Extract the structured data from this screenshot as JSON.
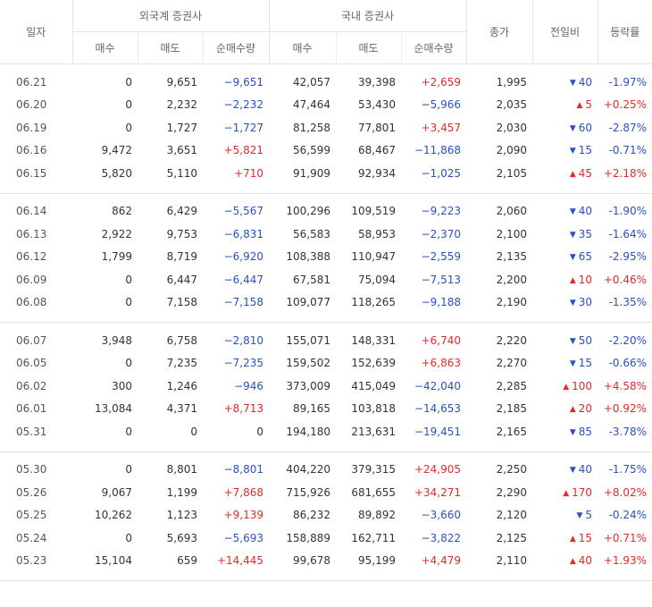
{
  "header": {
    "date": "일자",
    "foreign": "외국계 증권사",
    "domestic": "국내 증권사",
    "close": "종가",
    "change": "전일비",
    "rate": "등락률",
    "buy": "매수",
    "sell": "매도",
    "net": "순매수량"
  },
  "groups": [
    [
      {
        "date": "06.21",
        "fb": "0",
        "fs": "9,651",
        "fn": "−9,651",
        "fnc": "neg",
        "db": "42,057",
        "ds": "39,398",
        "dn": "+2,659",
        "dnc": "pos",
        "close": "1,995",
        "dir": "down",
        "chg": "40",
        "rate": "-1.97%",
        "rc": "neg"
      },
      {
        "date": "06.20",
        "fb": "0",
        "fs": "2,232",
        "fn": "−2,232",
        "fnc": "neg",
        "db": "47,464",
        "ds": "53,430",
        "dn": "−5,966",
        "dnc": "neg",
        "close": "2,035",
        "dir": "up",
        "chg": "5",
        "rate": "+0.25%",
        "rc": "pos"
      },
      {
        "date": "06.19",
        "fb": "0",
        "fs": "1,727",
        "fn": "−1,727",
        "fnc": "neg",
        "db": "81,258",
        "ds": "77,801",
        "dn": "+3,457",
        "dnc": "pos",
        "close": "2,030",
        "dir": "down",
        "chg": "60",
        "rate": "-2.87%",
        "rc": "neg"
      },
      {
        "date": "06.16",
        "fb": "9,472",
        "fs": "3,651",
        "fn": "+5,821",
        "fnc": "pos",
        "db": "56,599",
        "ds": "68,467",
        "dn": "−11,868",
        "dnc": "neg",
        "close": "2,090",
        "dir": "down",
        "chg": "15",
        "rate": "-0.71%",
        "rc": "neg"
      },
      {
        "date": "06.15",
        "fb": "5,820",
        "fs": "5,110",
        "fn": "+710",
        "fnc": "pos",
        "db": "91,909",
        "ds": "92,934",
        "dn": "−1,025",
        "dnc": "neg",
        "close": "2,105",
        "dir": "up",
        "chg": "45",
        "rate": "+2.18%",
        "rc": "pos"
      }
    ],
    [
      {
        "date": "06.14",
        "fb": "862",
        "fs": "6,429",
        "fn": "−5,567",
        "fnc": "neg",
        "db": "100,296",
        "ds": "109,519",
        "dn": "−9,223",
        "dnc": "neg",
        "close": "2,060",
        "dir": "down",
        "chg": "40",
        "rate": "-1.90%",
        "rc": "neg"
      },
      {
        "date": "06.13",
        "fb": "2,922",
        "fs": "9,753",
        "fn": "−6,831",
        "fnc": "neg",
        "db": "56,583",
        "ds": "58,953",
        "dn": "−2,370",
        "dnc": "neg",
        "close": "2,100",
        "dir": "down",
        "chg": "35",
        "rate": "-1.64%",
        "rc": "neg"
      },
      {
        "date": "06.12",
        "fb": "1,799",
        "fs": "8,719",
        "fn": "−6,920",
        "fnc": "neg",
        "db": "108,388",
        "ds": "110,947",
        "dn": "−2,559",
        "dnc": "neg",
        "close": "2,135",
        "dir": "down",
        "chg": "65",
        "rate": "-2.95%",
        "rc": "neg"
      },
      {
        "date": "06.09",
        "fb": "0",
        "fs": "6,447",
        "fn": "−6,447",
        "fnc": "neg",
        "db": "67,581",
        "ds": "75,094",
        "dn": "−7,513",
        "dnc": "neg",
        "close": "2,200",
        "dir": "up",
        "chg": "10",
        "rate": "+0.46%",
        "rc": "pos"
      },
      {
        "date": "06.08",
        "fb": "0",
        "fs": "7,158",
        "fn": "−7,158",
        "fnc": "neg",
        "db": "109,077",
        "ds": "118,265",
        "dn": "−9,188",
        "dnc": "neg",
        "close": "2,190",
        "dir": "down",
        "chg": "30",
        "rate": "-1.35%",
        "rc": "neg"
      }
    ],
    [
      {
        "date": "06.07",
        "fb": "3,948",
        "fs": "6,758",
        "fn": "−2,810",
        "fnc": "neg",
        "db": "155,071",
        "ds": "148,331",
        "dn": "+6,740",
        "dnc": "pos",
        "close": "2,220",
        "dir": "down",
        "chg": "50",
        "rate": "-2.20%",
        "rc": "neg"
      },
      {
        "date": "06.05",
        "fb": "0",
        "fs": "7,235",
        "fn": "−7,235",
        "fnc": "neg",
        "db": "159,502",
        "ds": "152,639",
        "dn": "+6,863",
        "dnc": "pos",
        "close": "2,270",
        "dir": "down",
        "chg": "15",
        "rate": "-0.66%",
        "rc": "neg"
      },
      {
        "date": "06.02",
        "fb": "300",
        "fs": "1,246",
        "fn": "−946",
        "fnc": "neg",
        "db": "373,009",
        "ds": "415,049",
        "dn": "−42,040",
        "dnc": "neg",
        "close": "2,285",
        "dir": "up",
        "chg": "100",
        "rate": "+4.58%",
        "rc": "pos"
      },
      {
        "date": "06.01",
        "fb": "13,084",
        "fs": "4,371",
        "fn": "+8,713",
        "fnc": "pos",
        "db": "89,165",
        "ds": "103,818",
        "dn": "−14,653",
        "dnc": "neg",
        "close": "2,185",
        "dir": "up",
        "chg": "20",
        "rate": "+0.92%",
        "rc": "pos"
      },
      {
        "date": "05.31",
        "fb": "0",
        "fs": "0",
        "fn": "0",
        "fnc": "zero",
        "db": "194,180",
        "ds": "213,631",
        "dn": "−19,451",
        "dnc": "neg",
        "close": "2,165",
        "dir": "down",
        "chg": "85",
        "rate": "-3.78%",
        "rc": "neg"
      }
    ],
    [
      {
        "date": "05.30",
        "fb": "0",
        "fs": "8,801",
        "fn": "−8,801",
        "fnc": "neg",
        "db": "404,220",
        "ds": "379,315",
        "dn": "+24,905",
        "dnc": "pos",
        "close": "2,250",
        "dir": "down",
        "chg": "40",
        "rate": "-1.75%",
        "rc": "neg"
      },
      {
        "date": "05.26",
        "fb": "9,067",
        "fs": "1,199",
        "fn": "+7,868",
        "fnc": "pos",
        "db": "715,926",
        "ds": "681,655",
        "dn": "+34,271",
        "dnc": "pos",
        "close": "2,290",
        "dir": "up",
        "chg": "170",
        "rate": "+8.02%",
        "rc": "pos"
      },
      {
        "date": "05.25",
        "fb": "10,262",
        "fs": "1,123",
        "fn": "+9,139",
        "fnc": "pos",
        "db": "86,232",
        "ds": "89,892",
        "dn": "−3,660",
        "dnc": "neg",
        "close": "2,120",
        "dir": "down",
        "chg": "5",
        "rate": "-0.24%",
        "rc": "neg"
      },
      {
        "date": "05.24",
        "fb": "0",
        "fs": "5,693",
        "fn": "−5,693",
        "fnc": "neg",
        "db": "158,889",
        "ds": "162,711",
        "dn": "−3,822",
        "dnc": "neg",
        "close": "2,125",
        "dir": "up",
        "chg": "15",
        "rate": "+0.71%",
        "rc": "pos"
      },
      {
        "date": "05.23",
        "fb": "15,104",
        "fs": "659",
        "fn": "+14,445",
        "fnc": "pos",
        "db": "99,678",
        "ds": "95,199",
        "dn": "+4,479",
        "dnc": "pos",
        "close": "2,110",
        "dir": "up",
        "chg": "40",
        "rate": "+1.93%",
        "rc": "pos"
      }
    ]
  ],
  "icons": {
    "up": "triangle-up-icon",
    "down": "triangle-down-icon"
  },
  "colors": {
    "up": "#e12a2a",
    "down": "#2a52be"
  }
}
